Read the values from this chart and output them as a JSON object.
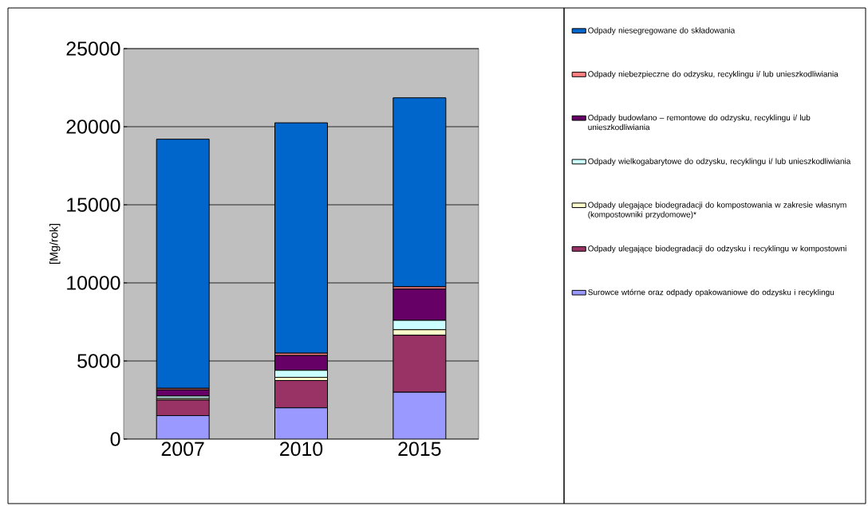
{
  "chart_data": {
    "type": "bar",
    "stacked": true,
    "ylabel": "[Mg/rok]",
    "categories": [
      "2007",
      "2010",
      "2015"
    ],
    "series": [
      {
        "name": "Surowce wtórne oraz odpady opakowaniowe do odzysku i recyklingu",
        "color": "#9999ff",
        "values": [
          1500,
          2000,
          3000
        ]
      },
      {
        "name": "Odpady ulegające biodegradacji do odzysku i recyklingu w kompostowni",
        "color": "#993366",
        "values": [
          1000,
          1750,
          3650
        ]
      },
      {
        "name": "Odpady ulegające biodegradacji do kompostowania w zakresie własnym (kompostowniki przydomowe)*",
        "color": "#ffffcc",
        "values": [
          100,
          200,
          350
        ]
      },
      {
        "name": "Odpady wielkogabarytowe do odzysku, recyklingu i/ lub unieszkodliwiania",
        "color": "#ccffff",
        "values": [
          150,
          450,
          600
        ]
      },
      {
        "name": "Odpady budowlano – remontowe do odzysku, recyklingu i/ lub unieszkodliwiania",
        "color": "#660066",
        "values": [
          400,
          950,
          2000
        ]
      },
      {
        "name": "Odpady niebezpieczne do odzysku, recyklingu i/ lub unieszkodliwiania",
        "color": "#ff8080",
        "values": [
          100,
          150,
          150
        ]
      },
      {
        "name": "Odpady niesegregowane do składowania",
        "color": "#0066cc",
        "values": [
          15950,
          14750,
          12100
        ]
      }
    ],
    "ylim": [
      0,
      25000
    ],
    "yticks": [
      0,
      5000,
      10000,
      15000,
      20000,
      25000
    ],
    "grid": "y",
    "legend": "right"
  }
}
